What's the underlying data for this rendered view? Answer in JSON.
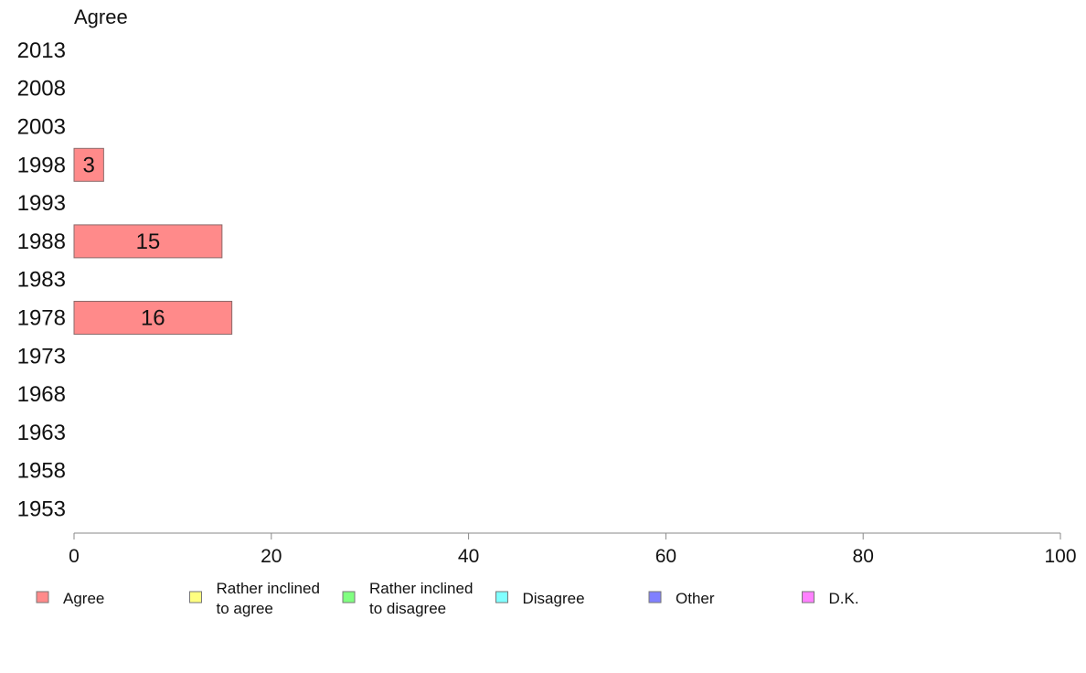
{
  "chart_data": {
    "type": "bar",
    "orientation": "horizontal",
    "title": "Agree",
    "categories": [
      "2013",
      "2008",
      "2003",
      "1998",
      "1993",
      "1988",
      "1983",
      "1978",
      "1973",
      "1968",
      "1963",
      "1958",
      "1953"
    ],
    "series": [
      {
        "name": "Agree",
        "color": "#ff8a8a",
        "values": [
          null,
          null,
          null,
          3,
          null,
          15,
          null,
          16,
          null,
          null,
          null,
          null,
          null
        ],
        "data_labels": [
          "",
          "",
          "",
          "3",
          "",
          "15",
          "",
          "16",
          "",
          "",
          "",
          "",
          ""
        ]
      }
    ],
    "xlim": [
      0,
      100
    ],
    "x_ticks": [
      "0",
      "20",
      "40",
      "60",
      "80",
      "100"
    ],
    "grid": false,
    "legend_position": "bottom",
    "legend": [
      {
        "label": "Agree",
        "color": "#ff8a8a"
      },
      {
        "label": "Rather inclined to agree",
        "lines": [
          "Rather inclined",
          "to agree"
        ],
        "color": "#ffff80"
      },
      {
        "label": "Rather inclined to disagree",
        "lines": [
          "Rather inclined",
          "to disagree"
        ],
        "color": "#80ff80"
      },
      {
        "label": "Disagree",
        "color": "#80ffff"
      },
      {
        "label": "Other",
        "color": "#8080ff"
      },
      {
        "label": "D.K.",
        "color": "#ff80ff"
      }
    ]
  }
}
